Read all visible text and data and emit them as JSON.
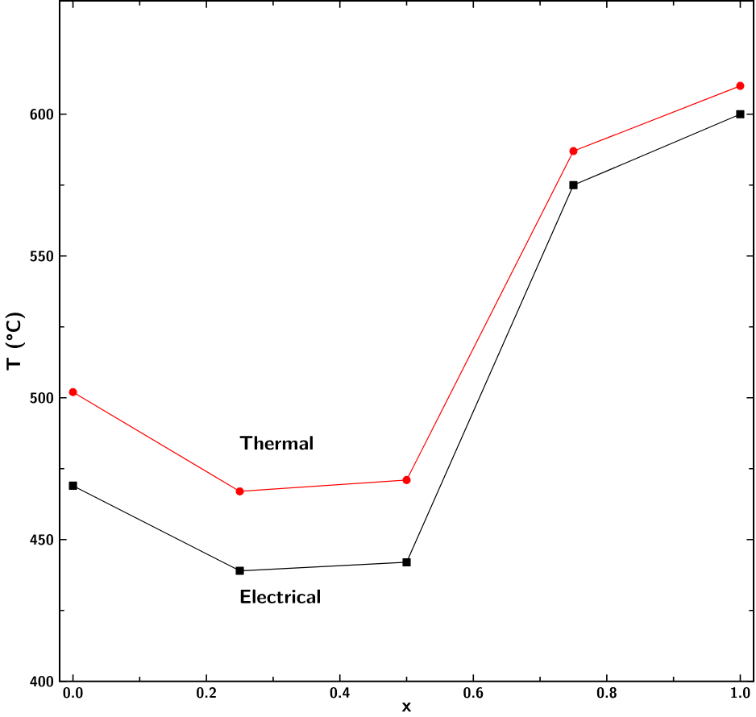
{
  "chart_data": {
    "type": "line",
    "xlabel": "x",
    "ylabel": "T (°C)",
    "x": [
      0.0,
      0.25,
      0.5,
      0.75,
      1.0
    ],
    "series": [
      {
        "name": "Thermal",
        "color": "#ff0000",
        "marker": "circle",
        "values": [
          502,
          467,
          471,
          587,
          610
        ]
      },
      {
        "name": "Electrical",
        "color": "#000000",
        "marker": "square",
        "values": [
          469,
          439,
          442,
          575,
          600
        ]
      }
    ],
    "xlim": [
      -0.02,
      1.02
    ],
    "ylim": [
      400,
      640
    ],
    "xticks": [
      {
        "value": 0.0,
        "label": "0.0"
      },
      {
        "value": 0.2,
        "label": "0.2"
      },
      {
        "value": 0.4,
        "label": "0.4"
      },
      {
        "value": 0.6,
        "label": "0.6"
      },
      {
        "value": 0.8,
        "label": "0.8"
      },
      {
        "value": 1.0,
        "label": "1.0"
      }
    ],
    "yticks": [
      400,
      450,
      500,
      550,
      600
    ]
  }
}
